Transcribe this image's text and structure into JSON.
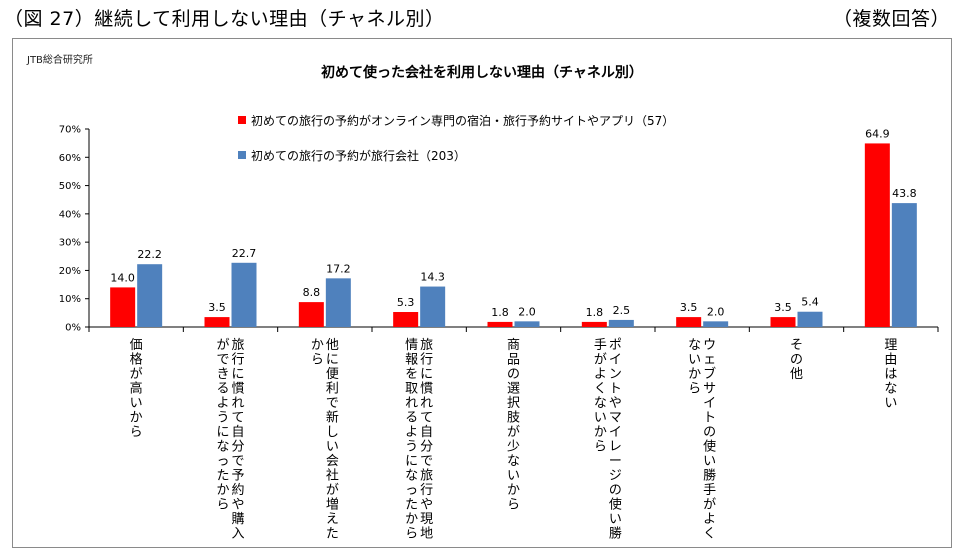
{
  "header": {
    "title": "（図 27）継続して利用しない理由（チャネル別）",
    "note": "（複数回答）"
  },
  "source_label": "JTB総合研究所",
  "colors": {
    "series_online": "#ff0000",
    "series_agency": "#4f81bd",
    "grid": "#000000"
  },
  "chart_data": {
    "type": "bar",
    "title": "初めて使った会社を利用しない理由（チャネル別）",
    "categories": [
      "価格が高いから",
      "旅行に慣れて自分で予約や購入ができるようになったから",
      "他に便利で新しい会社が増えたから",
      "旅行に慣れて自分で旅行や現地情報を取れるようになったから",
      "商品の選択肢が少ないから",
      "ポイントやマイレージの使い勝手がよくないから",
      "ウェブサイトの使い勝手がよくないから",
      "その他",
      "理由はない"
    ],
    "category_lines": [
      [
        "価格が高いから"
      ],
      [
        "旅行に慣れて自分で予約や購入",
        "ができるようになったから"
      ],
      [
        "他に便利で新しい会社が増えた",
        "から"
      ],
      [
        "旅行に慣れて自分で旅行や現地",
        "情報を取れるようになったから"
      ],
      [
        "商品の選択肢が少ないから"
      ],
      [
        "ポイントやマイレージの使い勝",
        "手がよくないから"
      ],
      [
        "ウェブサイトの使い勝手がよく",
        "ないから"
      ],
      [
        "その他"
      ],
      [
        "理由はない"
      ]
    ],
    "series": [
      {
        "name": "初めての旅行の予約がオンライン専門の宿泊・旅行予約サイトやアプリ（57）",
        "values": [
          14.0,
          3.5,
          8.8,
          5.3,
          1.8,
          1.8,
          3.5,
          3.5,
          64.9
        ],
        "labels": [
          "14.0",
          "3.5",
          "8.8",
          "5.3",
          "1.8",
          "1.8",
          "3.5",
          "3.5",
          "64.9"
        ]
      },
      {
        "name": "初めての旅行の予約が旅行会社（203）",
        "values": [
          22.2,
          22.7,
          17.2,
          14.3,
          2.0,
          2.5,
          2.0,
          5.4,
          43.8
        ],
        "labels": [
          "22.2",
          "22.7",
          "17.2",
          "14.3",
          "2.0",
          "2.5",
          "2.0",
          "5.4",
          "43.8"
        ]
      }
    ],
    "y_ticks": [
      "0%",
      "10%",
      "20%",
      "30%",
      "40%",
      "50%",
      "60%",
      "70%"
    ],
    "ylim": [
      0,
      70
    ],
    "legend_position": "top-center",
    "grid": false
  }
}
